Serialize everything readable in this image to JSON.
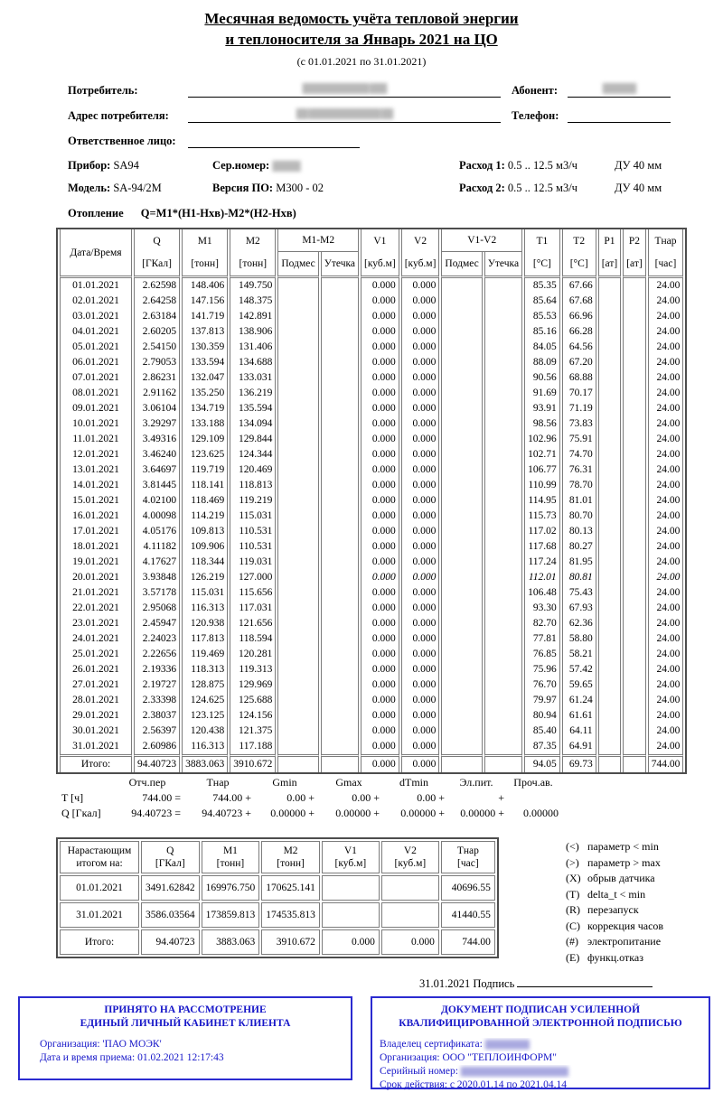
{
  "header": {
    "title_line1": "Месячная ведомость учёта тепловой энергии",
    "title_line2": "и теплоносителя за Январь 2021 на ЦО",
    "subtitle": "(с 01.01.2021 по 31.01.2021)"
  },
  "fields": {
    "consumer_label": "Потребитель:",
    "consumer_value": "████████████ ███",
    "abonent_label": "Абонент:",
    "abonent_value": "██████",
    "address_label": "Адрес потребителя:",
    "address_value": "██ █████████████ ██",
    "phone_label": "Телефон:",
    "phone_value": "",
    "responsible_label": "Ответственное лицо:",
    "responsible_value": ""
  },
  "device": {
    "device_label": "Прибор:",
    "device_value": "SA94",
    "serial_label": "Сер.номер:",
    "serial_value": "█████",
    "flow1_label": "Расход 1:",
    "flow1_value": "0.5 .. 12.5 м3/ч",
    "flow1_du": "ДУ 40 мм",
    "model_label": "Модель:",
    "model_value": "SA-94/2M",
    "firmware_label": "Версия ПО:",
    "firmware_value": "M300 - 02",
    "flow2_label": "Расход 2:",
    "flow2_value": "0.5 .. 12.5 м3/ч",
    "flow2_du": "ДУ 40 мм"
  },
  "heating": {
    "label": "Отопление",
    "formula": "Q=M1*(H1-Hхв)-M2*(H2-Hхв)"
  },
  "main_table": {
    "header": {
      "top": [
        "Дата/Время",
        "Q",
        "M1",
        "M2",
        "M1-M2",
        "V1",
        "V2",
        "V1-V2",
        "T1",
        "T2",
        "P1",
        "P2",
        "Тнар"
      ],
      "units": [
        "[ГКал]",
        "[тонн]",
        "[тонн]",
        "Подмес",
        "Утечка",
        "[куб.м]",
        "[куб.м]",
        "Подмес",
        "Утечка",
        "[°C]",
        "[°C]",
        "[ат]",
        "[ат]",
        "[час]"
      ]
    },
    "rows": [
      [
        "01.01.2021",
        "2.62598",
        "148.406",
        "149.750",
        "",
        "",
        "0.000",
        "0.000",
        "",
        "",
        "85.35",
        "67.66",
        "",
        "",
        "24.00"
      ],
      [
        "02.01.2021",
        "2.64258",
        "147.156",
        "148.375",
        "",
        "",
        "0.000",
        "0.000",
        "",
        "",
        "85.64",
        "67.68",
        "",
        "",
        "24.00"
      ],
      [
        "03.01.2021",
        "2.63184",
        "141.719",
        "142.891",
        "",
        "",
        "0.000",
        "0.000",
        "",
        "",
        "85.53",
        "66.96",
        "",
        "",
        "24.00"
      ],
      [
        "04.01.2021",
        "2.60205",
        "137.813",
        "138.906",
        "",
        "",
        "0.000",
        "0.000",
        "",
        "",
        "85.16",
        "66.28",
        "",
        "",
        "24.00"
      ],
      [
        "05.01.2021",
        "2.54150",
        "130.359",
        "131.406",
        "",
        "",
        "0.000",
        "0.000",
        "",
        "",
        "84.05",
        "64.56",
        "",
        "",
        "24.00"
      ],
      [
        "06.01.2021",
        "2.79053",
        "133.594",
        "134.688",
        "",
        "",
        "0.000",
        "0.000",
        "",
        "",
        "88.09",
        "67.20",
        "",
        "",
        "24.00"
      ],
      [
        "07.01.2021",
        "2.86231",
        "132.047",
        "133.031",
        "",
        "",
        "0.000",
        "0.000",
        "",
        "",
        "90.56",
        "68.88",
        "",
        "",
        "24.00"
      ],
      [
        "08.01.2021",
        "2.91162",
        "135.250",
        "136.219",
        "",
        "",
        "0.000",
        "0.000",
        "",
        "",
        "91.69",
        "70.17",
        "",
        "",
        "24.00"
      ],
      [
        "09.01.2021",
        "3.06104",
        "134.719",
        "135.594",
        "",
        "",
        "0.000",
        "0.000",
        "",
        "",
        "93.91",
        "71.19",
        "",
        "",
        "24.00"
      ],
      [
        "10.01.2021",
        "3.29297",
        "133.188",
        "134.094",
        "",
        "",
        "0.000",
        "0.000",
        "",
        "",
        "98.56",
        "73.83",
        "",
        "",
        "24.00"
      ],
      [
        "11.01.2021",
        "3.49316",
        "129.109",
        "129.844",
        "",
        "",
        "0.000",
        "0.000",
        "",
        "",
        "102.96",
        "75.91",
        "",
        "",
        "24.00"
      ],
      [
        "12.01.2021",
        "3.46240",
        "123.625",
        "124.344",
        "",
        "",
        "0.000",
        "0.000",
        "",
        "",
        "102.71",
        "74.70",
        "",
        "",
        "24.00"
      ],
      [
        "13.01.2021",
        "3.64697",
        "119.719",
        "120.469",
        "",
        "",
        "0.000",
        "0.000",
        "",
        "",
        "106.77",
        "76.31",
        "",
        "",
        "24.00"
      ],
      [
        "14.01.2021",
        "3.81445",
        "118.141",
        "118.813",
        "",
        "",
        "0.000",
        "0.000",
        "",
        "",
        "110.99",
        "78.70",
        "",
        "",
        "24.00"
      ],
      [
        "15.01.2021",
        "4.02100",
        "118.469",
        "119.219",
        "",
        "",
        "0.000",
        "0.000",
        "",
        "",
        "114.95",
        "81.01",
        "",
        "",
        "24.00"
      ],
      [
        "16.01.2021",
        "4.00098",
        "114.219",
        "115.031",
        "",
        "",
        "0.000",
        "0.000",
        "",
        "",
        "115.73",
        "80.70",
        "",
        "",
        "24.00"
      ],
      [
        "17.01.2021",
        "4.05176",
        "109.813",
        "110.531",
        "",
        "",
        "0.000",
        "0.000",
        "",
        "",
        "117.02",
        "80.13",
        "",
        "",
        "24.00"
      ],
      [
        "18.01.2021",
        "4.11182",
        "109.906",
        "110.531",
        "",
        "",
        "0.000",
        "0.000",
        "",
        "",
        "117.68",
        "80.27",
        "",
        "",
        "24.00"
      ],
      [
        "19.01.2021",
        "4.17627",
        "118.344",
        "119.031",
        "",
        "",
        "0.000",
        "0.000",
        "",
        "",
        "117.24",
        "81.95",
        "",
        "",
        "24.00"
      ],
      [
        "20.01.2021",
        "3.93848",
        "126.219",
        "127.000",
        "",
        "",
        "0.000",
        "0.000",
        "",
        "",
        "112.01",
        "80.81",
        "",
        "",
        "24.00"
      ],
      [
        "21.01.2021",
        "3.57178",
        "115.031",
        "115.656",
        "",
        "",
        "0.000",
        "0.000",
        "",
        "",
        "106.48",
        "75.43",
        "",
        "",
        "24.00"
      ],
      [
        "22.01.2021",
        "2.95068",
        "116.313",
        "117.031",
        "",
        "",
        "0.000",
        "0.000",
        "",
        "",
        "93.30",
        "67.93",
        "",
        "",
        "24.00"
      ],
      [
        "23.01.2021",
        "2.45947",
        "120.938",
        "121.656",
        "",
        "",
        "0.000",
        "0.000",
        "",
        "",
        "82.70",
        "62.36",
        "",
        "",
        "24.00"
      ],
      [
        "24.01.2021",
        "2.24023",
        "117.813",
        "118.594",
        "",
        "",
        "0.000",
        "0.000",
        "",
        "",
        "77.81",
        "58.80",
        "",
        "",
        "24.00"
      ],
      [
        "25.01.2021",
        "2.22656",
        "119.469",
        "120.281",
        "",
        "",
        "0.000",
        "0.000",
        "",
        "",
        "76.85",
        "58.21",
        "",
        "",
        "24.00"
      ],
      [
        "26.01.2021",
        "2.19336",
        "118.313",
        "119.313",
        "",
        "",
        "0.000",
        "0.000",
        "",
        "",
        "75.96",
        "57.42",
        "",
        "",
        "24.00"
      ],
      [
        "27.01.2021",
        "2.19727",
        "128.875",
        "129.969",
        "",
        "",
        "0.000",
        "0.000",
        "",
        "",
        "76.70",
        "59.65",
        "",
        "",
        "24.00"
      ],
      [
        "28.01.2021",
        "2.33398",
        "124.625",
        "125.688",
        "",
        "",
        "0.000",
        "0.000",
        "",
        "",
        "79.97",
        "61.24",
        "",
        "",
        "24.00"
      ],
      [
        "29.01.2021",
        "2.38037",
        "123.125",
        "124.156",
        "",
        "",
        "0.000",
        "0.000",
        "",
        "",
        "80.94",
        "61.61",
        "",
        "",
        "24.00"
      ],
      [
        "30.01.2021",
        "2.56397",
        "120.438",
        "121.375",
        "",
        "",
        "0.000",
        "0.000",
        "",
        "",
        "85.40",
        "64.11",
        "",
        "",
        "24.00"
      ],
      [
        "31.01.2021",
        "2.60986",
        "116.313",
        "117.188",
        "",
        "",
        "0.000",
        "0.000",
        "",
        "",
        "87.35",
        "64.91",
        "",
        "",
        "24.00"
      ]
    ],
    "flagged_cells": {
      "19": [
        6,
        7,
        10,
        11,
        14
      ]
    },
    "totals_rows": [
      [
        "Итого:",
        "94.40723",
        "3883.063",
        "3910.672",
        "",
        "",
        "0.000",
        "0.000",
        "",
        "",
        "94.05",
        "69.73",
        "",
        "",
        "744.00"
      ]
    ]
  },
  "balance": {
    "headers": [
      "Отч.пер",
      "Тнар",
      "Gmin",
      "Gmax",
      "dTmin",
      "Эл.пит.",
      "Проч.ав."
    ],
    "t_label": "T [ч]",
    "t_row": [
      "744.00 =",
      "744.00 +",
      "0.00 +",
      "0.00 +",
      "0.00 +",
      "+",
      ""
    ],
    "q_label": "Q [Гкал]",
    "q_row": [
      "94.40723 =",
      "94.40723 +",
      "0.00000 +",
      "0.00000 +",
      "0.00000 +",
      "0.00000 +",
      "0.00000"
    ]
  },
  "cumulative_table": {
    "header_rows": [
      [
        "Нарастающим\nитогом на:",
        "Q\n[ГКал]",
        "M1\n[тонн]",
        "M2\n[тонн]",
        "V1\n[куб.м]",
        "V2\n[куб.м]",
        "Тнар\n[час]"
      ]
    ],
    "rows": [
      [
        "01.01.2021",
        "3491.62842",
        "169976.750",
        "170625.141",
        "",
        "",
        "40696.55"
      ],
      [
        "31.01.2021",
        "3586.03564",
        "173859.813",
        "174535.813",
        "",
        "",
        "41440.55"
      ]
    ],
    "totals_rows": [
      [
        "Итого:",
        "94.40723",
        "3883.063",
        "3910.672",
        "0.000",
        "0.000",
        "744.00"
      ]
    ]
  },
  "legend": {
    "items": [
      {
        "mark": "(<)",
        "text": "параметр < min"
      },
      {
        "mark": "(>)",
        "text": "параметр > max"
      },
      {
        "mark": "(X)",
        "text": "обрыв датчика"
      },
      {
        "mark": "(T)",
        "text": "delta_t < min"
      },
      {
        "mark": "(R)",
        "text": "перезапуск"
      },
      {
        "mark": "(C)",
        "text": "коррекция часов"
      },
      {
        "mark": "(#)",
        "text": "электропитание"
      },
      {
        "mark": "(E)",
        "text": "функц.отказ"
      }
    ]
  },
  "signature": {
    "date": "31.01.2021",
    "label": "Подпись"
  },
  "acceptance_box": {
    "title_line1": "ПРИНЯТО НА РАССМОТРЕНИЕ",
    "title_line2": "ЕДИНЫЙ ЛИЧНЫЙ КАБИНЕТ КЛИЕНТА",
    "org_line": "Организация: 'ПАО МОЭК'",
    "received_line": "Дата и время приема: 01.02.2021 12:17:43"
  },
  "signature_box": {
    "title": "ДОКУМЕНТ ПОДПИСАН УСИЛЕННОЙ КВАЛИФИЦИРОВАННОЙ ЭЛЕКТРОННОЙ ПОДПИСЬЮ",
    "owner_label": "Владелец сертификата: ",
    "owner_value": "█████████",
    "org_line": "Организация: ООО \"ТЕПЛОИНФОРМ\"",
    "serial_label": "Серийный номер: ",
    "serial_value": "██████████████████████",
    "validity_line": "Срок действия: с 2020.01.14 по 2021.04.14"
  },
  "colors": {
    "accent_blue": "#1616c8",
    "box_border_blue": "#2b2bd0",
    "table_line_gray": "#7c7c7c",
    "text": "#000000"
  }
}
